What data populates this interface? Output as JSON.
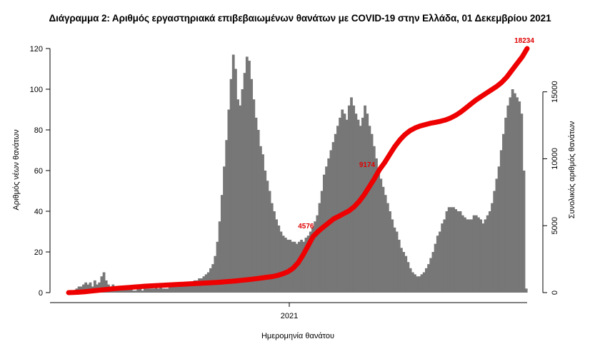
{
  "title": "Διάγραμμα 2: Αριθμός εργαστηριακά επιβεβαιωμένων θανάτων με COVID-19 στην Ελλάδα, 01 Δεκεμβρίου 2021",
  "chart_data": {
    "type": "bar",
    "title": "Διάγραμμα 2: Αριθμός εργαστηριακά επιβεβαιωμένων θανάτων με COVID-19 στην Ελλάδα, 01 Δεκεμβρίου 2021",
    "xlabel": "Ημερομηνία θανάτου",
    "ylabel": "Αριθμός νέων θανάτων",
    "y2label": "Συνολικός αριθμός θανάτων",
    "ylim": [
      0,
      120
    ],
    "y2lim": [
      0,
      18234
    ],
    "yticks": [
      0,
      20,
      40,
      60,
      80,
      100,
      120
    ],
    "y2ticks": [
      0,
      5000,
      10000,
      15000
    ],
    "xticks": [
      "2021"
    ],
    "x_start": "2020-03",
    "x_end": "2021-12-01",
    "colors": {
      "bars": "#777777",
      "cumulative_line": "#ee0000"
    },
    "series": [
      {
        "name": "Αριθμός νέων θανάτων",
        "type": "bar",
        "values": [
          0,
          0,
          1,
          2,
          3,
          3,
          4,
          5,
          4,
          5,
          3,
          6,
          4,
          5,
          8,
          10,
          6,
          4,
          3,
          4,
          3,
          3,
          2,
          2,
          2,
          2,
          2,
          2,
          1,
          1,
          2,
          2,
          1,
          2,
          2,
          2,
          2,
          2,
          3,
          2,
          3,
          2,
          2,
          2,
          3,
          3,
          3,
          3,
          4,
          4,
          4,
          5,
          4,
          5,
          5,
          6,
          6,
          7,
          7,
          8,
          9,
          10,
          12,
          14,
          18,
          25,
          35,
          48,
          62,
          75,
          90,
          105,
          117,
          110,
          95,
          92,
          100,
          108,
          116,
          114,
          105,
          95,
          86,
          80,
          72,
          68,
          60,
          55,
          50,
          44,
          40,
          36,
          33,
          30,
          28,
          27,
          26,
          26,
          25,
          25,
          24,
          25,
          26,
          25,
          27,
          28,
          30,
          32,
          35,
          38,
          44,
          50,
          58,
          62,
          66,
          70,
          74,
          78,
          82,
          86,
          90,
          88,
          85,
          92,
          96,
          92,
          88,
          85,
          82,
          86,
          92,
          88,
          82,
          78,
          72,
          66,
          60,
          56,
          52,
          48,
          44,
          40,
          36,
          32,
          30,
          26,
          22,
          20,
          18,
          15,
          12,
          10,
          9,
          8,
          8,
          9,
          10,
          12,
          14,
          17,
          20,
          24,
          28,
          30,
          34,
          36,
          40,
          42,
          42,
          42,
          41,
          40,
          40,
          38,
          37,
          36,
          36,
          36,
          38,
          38,
          37,
          36,
          34,
          36,
          38,
          40,
          44,
          50,
          56,
          62,
          70,
          78,
          86,
          92,
          96,
          100,
          98,
          96,
          94,
          88,
          60,
          2
        ],
        "unit": "approximate daily deaths read from bar heights"
      },
      {
        "name": "Συνολικός αριθμός θανάτων",
        "type": "line",
        "axis": "right",
        "values": [
          0,
          10,
          30,
          60,
          100,
          140,
          180,
          220,
          260,
          300,
          330,
          360,
          390,
          420,
          450,
          480,
          500,
          520,
          540,
          560,
          580,
          600,
          620,
          640,
          660,
          680,
          700,
          720,
          740,
          760,
          790,
          820,
          850,
          880,
          920,
          960,
          1000,
          1050,
          1100,
          1150,
          1200,
          1280,
          1400,
          1550,
          1800,
          2200,
          2800,
          3500,
          4200,
          4576,
          4900,
          5200,
          5500,
          5700,
          5900,
          6100,
          6400,
          6800,
          7300,
          7900,
          8500,
          9174,
          9700,
          10300,
          10900,
          11400,
          11800,
          12100,
          12300,
          12450,
          12550,
          12650,
          12720,
          12800,
          12900,
          13050,
          13250,
          13500,
          13800,
          14100,
          14400,
          14650,
          14900,
          15150,
          15400,
          15700,
          16100,
          16600,
          17100,
          17600,
          18234
        ]
      }
    ],
    "annotations": [
      {
        "text": "4576",
        "value": 4576,
        "series": "Συνολικός αριθμός θανάτων"
      },
      {
        "text": "9174",
        "value": 9174,
        "series": "Συνολικός αριθμός θανάτων"
      },
      {
        "text": "18234",
        "value": 18234,
        "series": "Συνολικός αριθμός θανάτων"
      }
    ]
  }
}
